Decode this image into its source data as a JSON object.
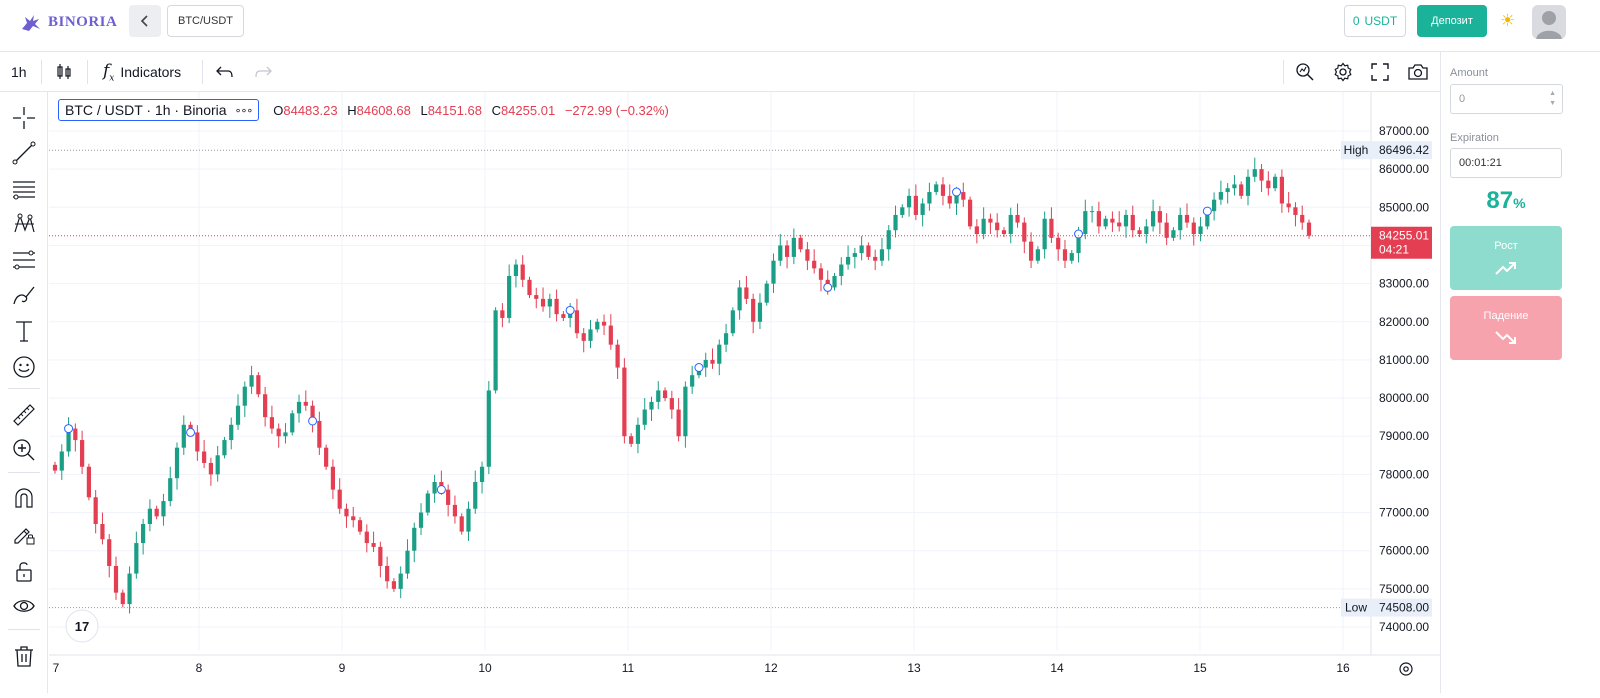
{
  "header": {
    "logo_text": "BINORIA",
    "back_icon": "chevron-left-icon",
    "pair_label": "BTC/USDT",
    "balance_amount": "0",
    "balance_currency": "USDT",
    "deposit_label": "Депозит",
    "theme_icon": "sun-icon",
    "avatar_icon": "user-avatar-icon"
  },
  "toolbar": {
    "interval": "1h",
    "indicators_label": "Indicators",
    "left_icons": [
      "candles-icon",
      "fx-icon",
      "undo-icon",
      "redo-icon"
    ],
    "right_icons": [
      "quick-search-icon",
      "settings-icon",
      "fullscreen-icon",
      "camera-icon"
    ]
  },
  "drawing_tools": [
    "crosshair-icon",
    "trend-line-icon",
    "horizontal-lines-icon",
    "pattern-icon",
    "fib-icon",
    "brush-icon",
    "text-icon",
    "emoji-icon",
    "ruler-icon",
    "zoom-in-icon",
    "magnet-icon",
    "lock-drawing-icon",
    "unlock-icon",
    "eye-icon",
    "trash-icon"
  ],
  "legend": {
    "title": "BTC / USDT · 1h · Binoria",
    "more": "∘∘∘",
    "o_label": "O",
    "o_value": "84483.23",
    "h_label": "H",
    "h_value": "84608.68",
    "l_label": "L",
    "l_value": "84151.68",
    "c_label": "C",
    "c_value": "84255.01",
    "change": "−272.99 (−0.32%)"
  },
  "colors": {
    "up": "#1a9e86",
    "down": "#e33e52",
    "accent": "#1ab39a",
    "logo": "#6d5fcf"
  },
  "chart_data": {
    "type": "candlestick",
    "y_ticks": [
      87000,
      86000,
      85000,
      84000,
      83000,
      82000,
      81000,
      80000,
      79000,
      78000,
      77000,
      76000,
      75000,
      74000
    ],
    "x_ticks": [
      "7",
      "8",
      "9",
      "10",
      "11",
      "12",
      "13",
      "14",
      "15",
      "16"
    ],
    "ylim": [
      73500,
      87500
    ],
    "high_label": "High",
    "high_value": "86496.42",
    "low_label": "Low",
    "low_value": "74508.00",
    "last_price": "84255.01",
    "countdown": "04:21",
    "closes": [
      78100,
      78600,
      79200,
      78900,
      78200,
      77400,
      76700,
      76300,
      75600,
      74900,
      74600,
      75400,
      76200,
      76700,
      77100,
      76900,
      77300,
      77900,
      78700,
      79300,
      79100,
      78600,
      78300,
      78000,
      78500,
      78900,
      79300,
      79800,
      80300,
      80600,
      80100,
      79500,
      79200,
      79000,
      79100,
      79600,
      79900,
      79800,
      79400,
      78700,
      78200,
      77600,
      77100,
      76900,
      76800,
      76500,
      76200,
      76100,
      75600,
      75200,
      75000,
      75400,
      76000,
      76600,
      77000,
      77500,
      77800,
      77600,
      77200,
      76900,
      76500,
      77100,
      77800,
      78200,
      80200,
      82300,
      82100,
      83200,
      83500,
      83100,
      82700,
      82600,
      82400,
      82600,
      82200,
      82100,
      82300,
      81700,
      81500,
      81800,
      82000,
      81900,
      81400,
      80800,
      79000,
      78800,
      79300,
      79700,
      79900,
      80200,
      80000,
      79700,
      79000,
      80300,
      80600,
      80800,
      81000,
      80900,
      81400,
      81700,
      82300,
      82900,
      82600,
      82000,
      82500,
      83000,
      83600,
      84000,
      83700,
      84200,
      83900,
      83600,
      83400,
      83100,
      82900,
      83200,
      83500,
      83700,
      83800,
      84000,
      83700,
      83600,
      83900,
      84400,
      84800,
      85000,
      85300,
      84800,
      85100,
      85400,
      85600,
      85300,
      85100,
      85400,
      85200,
      84500,
      84300,
      84700,
      84600,
      84400,
      84300,
      84800,
      84600,
      84100,
      83600,
      83900,
      84700,
      84200,
      83900,
      83600,
      83800,
      84300,
      84900,
      84900,
      84500,
      84700,
      84600,
      84500,
      84800,
      84400,
      84300,
      84500,
      84900,
      84600,
      84200,
      84400,
      84800,
      84600,
      84300,
      84500,
      84900,
      85200,
      85400,
      85500,
      85600,
      85300,
      85800,
      86000,
      85700,
      85500,
      85800,
      85100,
      85000,
      84800,
      84600,
      84255
    ]
  },
  "panel": {
    "amount_label": "Amount",
    "amount_value": "0",
    "expiration_label": "Expiration",
    "expiration_value": "00:01:21",
    "payout_value": "87",
    "payout_unit": "%",
    "up_label": "Рост",
    "down_label": "Падение"
  }
}
